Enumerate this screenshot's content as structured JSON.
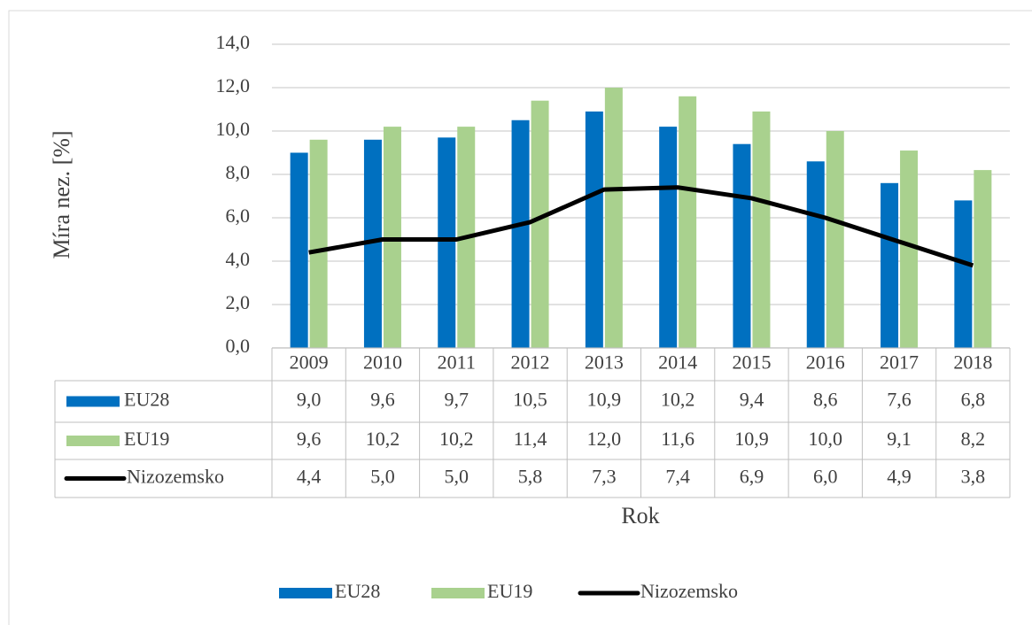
{
  "chart_data": {
    "type": "bar",
    "y_label": "Míra nez. [%]",
    "x_label": "Rok",
    "categories": [
      "2009",
      "2010",
      "2011",
      "2012",
      "2013",
      "2014",
      "2015",
      "2016",
      "2017",
      "2018"
    ],
    "series": [
      {
        "name": "EU28",
        "type": "bar",
        "color": "#0070c0",
        "values": [
          9.0,
          9.6,
          9.7,
          10.5,
          10.9,
          10.2,
          9.4,
          8.6,
          7.6,
          6.8
        ],
        "value_labels": [
          "9,0",
          "9,6",
          "9,7",
          "10,5",
          "10,9",
          "10,2",
          "9,4",
          "8,6",
          "7,6",
          "6,8"
        ]
      },
      {
        "name": "EU19",
        "type": "bar",
        "color": "#a9d18e",
        "values": [
          9.6,
          10.2,
          10.2,
          11.4,
          12.0,
          11.6,
          10.9,
          10.0,
          9.1,
          8.2
        ],
        "value_labels": [
          "9,6",
          "10,2",
          "10,2",
          "11,4",
          "12,0",
          "11,6",
          "10,9",
          "10,0",
          "9,1",
          "8,2"
        ]
      },
      {
        "name": "Nizozemsko",
        "type": "line",
        "color": "#000000",
        "values": [
          4.4,
          5.0,
          5.0,
          5.8,
          7.3,
          7.4,
          6.9,
          6.0,
          4.9,
          3.8
        ],
        "value_labels": [
          "4,4",
          "5,0",
          "5,0",
          "5,8",
          "7,3",
          "7,4",
          "6,9",
          "6,0",
          "4,9",
          "3,8"
        ]
      }
    ],
    "ylim": [
      0,
      14
    ],
    "yticks": [
      {
        "value": 0,
        "label": "0,0"
      },
      {
        "value": 2,
        "label": "2,0"
      },
      {
        "value": 4,
        "label": "4,0"
      },
      {
        "value": 6,
        "label": "6,0"
      },
      {
        "value": 8,
        "label": "8,0"
      },
      {
        "value": 10,
        "label": "10,0"
      },
      {
        "value": 12,
        "label": "12,0"
      },
      {
        "value": 14,
        "label": "14,0"
      }
    ],
    "grid": true,
    "legend": "bottom",
    "data_table": true
  }
}
